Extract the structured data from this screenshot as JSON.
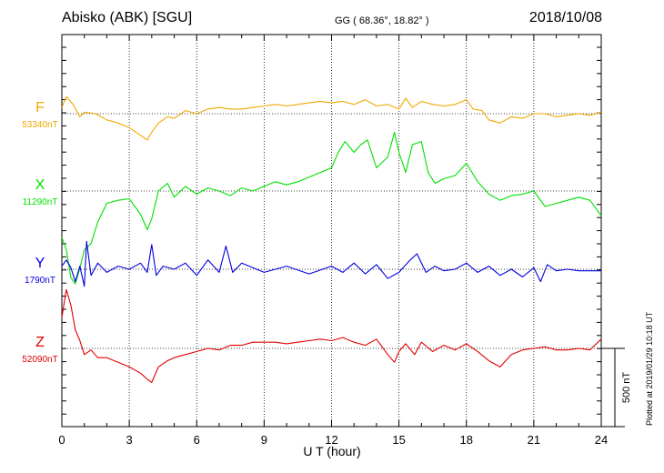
{
  "header": {
    "station": "Abisko (ABK)  [SGU]",
    "coords": "GG ( 68.36°,  18.82° )",
    "date": "2018/10/08"
  },
  "footer": {
    "plotted": "Plotted at 2019/01/29 10:18 UT"
  },
  "chart_data": {
    "type": "line",
    "xlabel": "U T (hour)",
    "xlim": [
      0,
      24
    ],
    "xticks": [
      "0",
      "3",
      "6",
      "9",
      "12",
      "15",
      "18",
      "21",
      "24"
    ],
    "scale_bar": "500 nT",
    "grid": true,
    "series": [
      {
        "name": "F",
        "baseline": "53340nT",
        "color": "#f0a800",
        "x": [
          0,
          0.2,
          0.5,
          0.8,
          1.0,
          1.5,
          2.0,
          2.5,
          3.0,
          3.5,
          3.8,
          4.0,
          4.3,
          4.7,
          5.0,
          5.5,
          6.0,
          6.5,
          7.0,
          7.5,
          8.0,
          8.5,
          9.0,
          9.5,
          10.0,
          10.5,
          11.0,
          11.5,
          12.0,
          12.5,
          13.0,
          13.5,
          14.0,
          14.5,
          15.0,
          15.3,
          15.6,
          16.0,
          16.5,
          17.0,
          17.5,
          18.0,
          18.3,
          18.7,
          19.0,
          19.5,
          20.0,
          20.5,
          21.0,
          21.5,
          22.0,
          22.5,
          23.0,
          23.5,
          24.0
        ],
        "values": [
          40,
          110,
          60,
          -20,
          10,
          0,
          -40,
          -60,
          -90,
          -140,
          -170,
          -120,
          -60,
          -20,
          -30,
          20,
          0,
          30,
          40,
          30,
          30,
          40,
          50,
          60,
          50,
          60,
          70,
          80,
          70,
          80,
          60,
          90,
          50,
          60,
          30,
          100,
          40,
          80,
          60,
          50,
          60,
          90,
          30,
          20,
          -40,
          -60,
          -20,
          -30,
          0,
          0,
          -20,
          -10,
          0,
          -10,
          10
        ]
      },
      {
        "name": "X",
        "baseline": "11290nT",
        "color": "#00e000",
        "x": [
          0,
          0.2,
          0.4,
          0.6,
          0.8,
          1.0,
          1.3,
          1.6,
          2.0,
          2.5,
          3.0,
          3.5,
          3.8,
          4.0,
          4.3,
          4.7,
          5.0,
          5.5,
          6.0,
          6.5,
          7.0,
          7.5,
          8.0,
          8.5,
          9.0,
          9.5,
          10.0,
          10.5,
          11.0,
          11.5,
          12.0,
          12.3,
          12.6,
          13.0,
          13.3,
          13.6,
          14.0,
          14.5,
          14.8,
          15.0,
          15.3,
          15.6,
          16.0,
          16.3,
          16.6,
          17.0,
          17.5,
          18.0,
          18.5,
          19.0,
          19.5,
          20.0,
          20.5,
          21.0,
          21.5,
          22.0,
          22.5,
          23.0,
          23.5,
          24.0
        ],
        "values": [
          -300,
          -380,
          -560,
          -600,
          -500,
          -380,
          -340,
          -200,
          -80,
          -60,
          -50,
          -150,
          -250,
          -180,
          0,
          50,
          -40,
          30,
          -20,
          20,
          0,
          -30,
          20,
          0,
          30,
          60,
          40,
          60,
          90,
          120,
          150,
          250,
          320,
          250,
          300,
          330,
          150,
          220,
          380,
          250,
          120,
          300,
          320,
          120,
          50,
          80,
          100,
          180,
          60,
          -20,
          -60,
          -30,
          -20,
          0,
          -100,
          -80,
          -60,
          -40,
          -60,
          -160
        ]
      },
      {
        "name": "Y",
        "baseline": "1790nT",
        "color": "#0000e0",
        "x": [
          0,
          0.2,
          0.4,
          0.6,
          0.8,
          1.0,
          1.1,
          1.3,
          1.6,
          2.0,
          2.5,
          3.0,
          3.5,
          3.8,
          4.0,
          4.2,
          4.5,
          5.0,
          5.5,
          6.0,
          6.5,
          7.0,
          7.3,
          7.6,
          8.0,
          9.0,
          10.0,
          11.0,
          12.0,
          12.5,
          13.0,
          13.5,
          14.0,
          14.5,
          15.0,
          15.5,
          15.8,
          16.2,
          16.6,
          17.0,
          17.5,
          18.0,
          18.5,
          19.0,
          19.5,
          20.0,
          20.5,
          21.0,
          21.3,
          21.6,
          22.0,
          22.5,
          23.0,
          24.0
        ],
        "values": [
          20,
          60,
          10,
          -80,
          20,
          -110,
          180,
          -40,
          40,
          -20,
          20,
          0,
          40,
          -20,
          160,
          -40,
          20,
          0,
          40,
          -40,
          60,
          -20,
          150,
          -20,
          40,
          -20,
          20,
          -30,
          20,
          -20,
          40,
          -30,
          30,
          -60,
          -20,
          60,
          100,
          -20,
          20,
          -10,
          0,
          40,
          -20,
          20,
          -40,
          0,
          -50,
          10,
          -80,
          30,
          -10,
          0,
          -10,
          -10
        ]
      },
      {
        "name": "Z",
        "baseline": "52090nT",
        "color": "#e00000",
        "x": [
          0,
          0.2,
          0.4,
          0.6,
          0.8,
          1.0,
          1.3,
          1.6,
          2.0,
          2.5,
          3.0,
          3.5,
          3.8,
          4.0,
          4.3,
          4.7,
          5.0,
          5.5,
          6.0,
          6.5,
          7.0,
          7.5,
          8.0,
          8.5,
          9.0,
          9.5,
          10.0,
          10.5,
          11.0,
          11.5,
          12.0,
          12.5,
          13.0,
          13.5,
          14.0,
          14.5,
          14.8,
          15.0,
          15.3,
          15.7,
          16.0,
          16.5,
          17.0,
          17.5,
          18.0,
          18.5,
          19.0,
          19.5,
          20.0,
          20.5,
          21.0,
          21.5,
          22.0,
          22.5,
          23.0,
          23.5,
          24.0
        ],
        "values": [
          200,
          380,
          280,
          120,
          50,
          -40,
          -10,
          -60,
          -60,
          -90,
          -120,
          -160,
          -200,
          -220,
          -120,
          -80,
          -60,
          -40,
          -20,
          0,
          -10,
          20,
          20,
          40,
          40,
          40,
          30,
          40,
          50,
          60,
          50,
          70,
          40,
          20,
          60,
          -40,
          -90,
          -20,
          30,
          -40,
          40,
          -20,
          20,
          -10,
          30,
          -20,
          -80,
          -120,
          -40,
          -10,
          0,
          10,
          -10,
          -10,
          0,
          -10,
          60
        ]
      }
    ]
  }
}
